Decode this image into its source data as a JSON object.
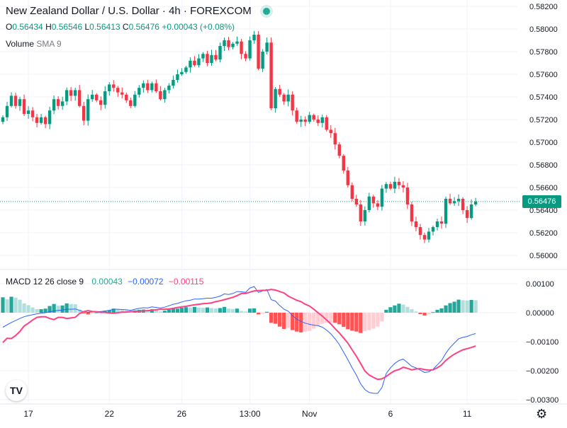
{
  "header": {
    "title": "New Zealand Dollar / U.S. Dollar · 4h · FOREXCOM",
    "ohlc": {
      "o_label": "O",
      "o": "0.56434",
      "h_label": "H",
      "h": "0.56546",
      "l_label": "L",
      "l": "0.56413",
      "c_label": "C",
      "c": "0.56476",
      "change": "+0.00043 (+0.08%)"
    },
    "volume_label": "Volume",
    "volume_sub": "SMA 9"
  },
  "macd_header": {
    "label": "MACD",
    "params": "12 26 close 9",
    "histogram_value": "0.00043",
    "macd_value": "−0.00072",
    "signal_value": "−0.00115"
  },
  "colors": {
    "up": "#089981",
    "down": "#f23645",
    "hist_up_strong": "#26a69a",
    "hist_up_weak": "#b2dfdb",
    "hist_down_strong": "#ff5252",
    "hist_down_weak": "#ffcdd2",
    "macd_line": "#2962ff",
    "signal_line": "#ff4081",
    "grid": "#f0f3fa",
    "axis_text": "#131722"
  },
  "price_tag": "0.56476",
  "logo_text": "TV",
  "chart_data": {
    "type": "candlestick",
    "price_axis": {
      "range": [
        0.5592,
        0.5823
      ],
      "ticks": [
        "0.58200",
        "0.58000",
        "0.57800",
        "0.57600",
        "0.57400",
        "0.57200",
        "0.57000",
        "0.56800",
        "0.56600",
        "0.56400",
        "0.56200",
        "0.56000"
      ]
    },
    "time_axis": {
      "labels": [
        {
          "text": "17",
          "bar": 6
        },
        {
          "text": "22",
          "bar": 25
        },
        {
          "text": "26",
          "bar": 42
        },
        {
          "text": "13:00",
          "bar": 58
        },
        {
          "text": "Nov",
          "bar": 72
        },
        {
          "text": "6",
          "bar": 91
        },
        {
          "text": "11",
          "bar": 109
        }
      ]
    },
    "last_price": 0.56476,
    "bar_count": 112,
    "series": [
      {
        "name": "price",
        "closes": [
          0.5722,
          0.5732,
          0.5741,
          0.5732,
          0.5738,
          0.5725,
          0.5728,
          0.5722,
          0.5717,
          0.5722,
          0.5716,
          0.5728,
          0.5738,
          0.5732,
          0.5736,
          0.5746,
          0.5741,
          0.5746,
          0.5732,
          0.5719,
          0.5738,
          0.5742,
          0.5737,
          0.5733,
          0.5745,
          0.5751,
          0.5748,
          0.5744,
          0.5742,
          0.5737,
          0.5732,
          0.5742,
          0.5748,
          0.5752,
          0.5746,
          0.5752,
          0.5745,
          0.5738,
          0.5746,
          0.575,
          0.5755,
          0.576,
          0.5762,
          0.5766,
          0.5772,
          0.5768,
          0.5774,
          0.5778,
          0.577,
          0.5777,
          0.5773,
          0.5785,
          0.579,
          0.5784,
          0.5787,
          0.5789,
          0.5778,
          0.5774,
          0.579,
          0.5795,
          0.5765,
          0.578,
          0.5788,
          0.573,
          0.5747,
          0.5742,
          0.5736,
          0.5742,
          0.5728,
          0.5718,
          0.572,
          0.5718,
          0.5724,
          0.572,
          0.5717,
          0.5722,
          0.5711,
          0.5708,
          0.5698,
          0.5688,
          0.5675,
          0.5662,
          0.565,
          0.5645,
          0.563,
          0.564,
          0.5652,
          0.5646,
          0.5643,
          0.5659,
          0.5663,
          0.5659,
          0.5665,
          0.5662,
          0.566,
          0.5645,
          0.563,
          0.5625,
          0.5618,
          0.5614,
          0.5621,
          0.5625,
          0.563,
          0.5628,
          0.565,
          0.5646,
          0.5648,
          0.565,
          0.564,
          0.5633,
          0.5645,
          0.56476
        ]
      }
    ],
    "macd_axis": {
      "range": [
        -0.0032,
        0.0015
      ],
      "ticks": [
        "0.00100",
        "0.00000",
        "−0.00100",
        "−0.00200",
        "−0.00300"
      ]
    },
    "macd_series": [
      {
        "name": "Histogram",
        "values": [
          0.00053,
          0.00046,
          0.00055,
          0.00052,
          0.00045,
          0.00032,
          0.00026,
          0.00018,
          0.00012,
          0.00012,
          0.00014,
          0.00023,
          0.0003,
          0.00024,
          0.00025,
          0.00032,
          0.0003,
          0.00029,
          0.00011,
          -1e-05,
          -6e-05,
          -1e-05,
          1e-05,
          3e-05,
          5e-05,
          9e-05,
          0.00014,
          0.00012,
          9e-05,
          8e-05,
          4e-05,
          8e-05,
          0.0001,
          0.00011,
          9e-05,
          0.00012,
          8e-05,
          4e-05,
          7e-05,
          0.00011,
          0.00014,
          0.00014,
          0.00017,
          0.00019,
          0.00018,
          0.0002,
          0.00018,
          0.00017,
          0.00018,
          0.00016,
          0.00015,
          0.00016,
          0.0002,
          0.00014,
          0.00013,
          0.00014,
          6e-05,
          4e-05,
          0.00014,
          0.00015,
          -6e-05,
          -2e-05,
          3e-05,
          -0.00035,
          -0.00038,
          -0.00048,
          -0.00056,
          -0.00052,
          -0.0006,
          -0.00065,
          -0.00068,
          -0.00065,
          -0.00063,
          -0.00055,
          -0.00045,
          -0.00038,
          -0.00035,
          -0.00034,
          -0.00035,
          -0.0004,
          -0.00049,
          -0.00057,
          -0.00062,
          -0.00065,
          -0.0007,
          -0.00064,
          -0.0006,
          -0.00055,
          -0.00048,
          -0.0003,
          0.0001,
          0.00019,
          0.00025,
          0.00031,
          0.00028,
          0.0002,
          0.00012,
          4e-05,
          -5e-05,
          -0.0001,
          -6e-05,
          2e-05,
          0.0001,
          0.00015,
          0.00025,
          0.00033,
          0.00038,
          0.00045,
          0.00043,
          0.00042,
          0.00044,
          0.00043
        ]
      },
      {
        "name": "MACD",
        "values": [
          -0.0005,
          -0.00042,
          -0.00034,
          -0.00027,
          -0.0002,
          -0.00014,
          -0.0001,
          -7e-05,
          -4e-05,
          -2e-05,
          0.0,
          3e-05,
          6e-05,
          8e-05,
          9e-05,
          0.00012,
          0.00012,
          0.00013,
          8e-05,
          3e-05,
          1e-05,
          3e-05,
          4e-05,
          4e-05,
          6e-05,
          8e-05,
          0.00012,
          0.00012,
          0.00011,
          0.0001,
          8e-05,
          0.00012,
          0.00015,
          0.00017,
          0.00016,
          0.0002,
          0.00018,
          0.00016,
          0.00019,
          0.00024,
          0.00029,
          0.00032,
          0.00037,
          0.00041,
          0.00043,
          0.00047,
          0.00047,
          0.00048,
          0.0005,
          0.0005,
          0.00053,
          0.00057,
          0.00065,
          0.00063,
          0.00066,
          0.00073,
          0.00072,
          0.0007,
          0.00085,
          0.0009,
          0.0007,
          0.00075,
          0.0008,
          0.00045,
          0.0004,
          0.00025,
          0.00012,
          5e-05,
          -0.0001,
          -0.00022,
          -0.0003,
          -0.00036,
          -0.0004,
          -0.00043,
          -0.00045,
          -0.0005,
          -0.0006,
          -0.00073,
          -0.0009,
          -0.0011,
          -0.00136,
          -0.00162,
          -0.0019,
          -0.00215,
          -0.00245,
          -0.00265,
          -0.00275,
          -0.00278,
          -0.00278,
          -0.00258,
          -0.0021,
          -0.0019,
          -0.00175,
          -0.00165,
          -0.0016,
          -0.00172,
          -0.00185,
          -0.0019,
          -0.00198,
          -0.00206,
          -0.00204,
          -0.00195,
          -0.0018,
          -0.00165,
          -0.0014,
          -0.0012,
          -0.00105,
          -0.0009,
          -0.00085,
          -0.00082,
          -0.00076,
          -0.00072
        ]
      },
      {
        "name": "Signal",
        "values": [
          -0.00103,
          -0.00088,
          -0.00089,
          -0.00079,
          -0.00065,
          -0.00046,
          -0.00036,
          -0.00025,
          -0.00016,
          -0.00014,
          -0.00014,
          -0.0002,
          -0.00024,
          -0.00016,
          -0.00016,
          -0.0002,
          -0.00018,
          -0.00016,
          -3e-05,
          4e-05,
          7e-05,
          4e-05,
          3e-05,
          1e-05,
          1e-05,
          -1e-05,
          -2e-05,
          0.0,
          2e-05,
          2e-05,
          4e-05,
          4e-05,
          5e-05,
          6e-05,
          7e-05,
          8e-05,
          0.0001,
          0.00012,
          0.00012,
          0.00013,
          0.00015,
          0.00018,
          0.0002,
          0.00022,
          0.00025,
          0.00027,
          0.00029,
          0.00031,
          0.00032,
          0.00034,
          0.00038,
          0.00041,
          0.00045,
          0.00049,
          0.00053,
          0.00059,
          0.00066,
          0.00066,
          0.00071,
          0.00075,
          0.00076,
          0.00077,
          0.00077,
          0.0008,
          0.00078,
          0.00073,
          0.00068,
          0.00057,
          0.0005,
          0.00043,
          0.00038,
          0.00029,
          0.00023,
          0.00012,
          0.0,
          -0.00012,
          -0.00025,
          -0.00039,
          -0.00055,
          -0.0007,
          -0.00087,
          -0.00105,
          -0.00128,
          -0.0015,
          -0.00175,
          -0.00201,
          -0.00215,
          -0.00223,
          -0.0023,
          -0.00228,
          -0.0022,
          -0.00209,
          -0.002,
          -0.00196,
          -0.00188,
          -0.00192,
          -0.00197,
          -0.00194,
          -0.00193,
          -0.00196,
          -0.00198,
          -0.00197,
          -0.0019,
          -0.0018,
          -0.00165,
          -0.00153,
          -0.00143,
          -0.00135,
          -0.00128,
          -0.00124,
          -0.0012,
          -0.00115
        ]
      }
    ]
  }
}
